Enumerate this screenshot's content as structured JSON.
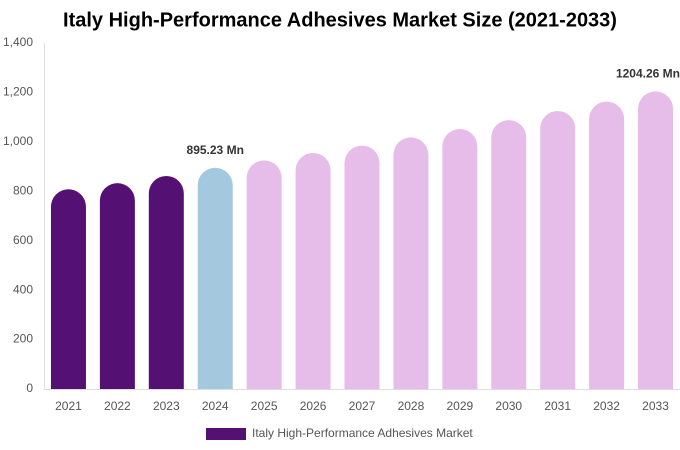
{
  "chart_data": {
    "type": "bar",
    "title": "Italy High-Performance Adhesives Market Size (2021-2033)",
    "categories": [
      "2021",
      "2022",
      "2023",
      "2024",
      "2025",
      "2026",
      "2027",
      "2028",
      "2029",
      "2030",
      "2031",
      "2032",
      "2033"
    ],
    "series": [
      {
        "name": "Italy High-Performance Adhesives Market",
        "color": "#541173",
        "colors": [
          "#541173",
          "#541173",
          "#541173",
          "#a4c9de",
          "#e6bde8",
          "#e6bde8",
          "#e6bde8",
          "#e6bde8",
          "#e6bde8",
          "#e6bde8",
          "#e6bde8",
          "#e6bde8",
          "#e6bde8"
        ],
        "values": [
          808,
          833,
          862,
          895.23,
          925,
          955,
          985,
          1018,
          1052,
          1088,
          1125,
          1163,
          1204.26
        ],
        "value_labels": [
          null,
          null,
          null,
          "895.23 Mn",
          null,
          null,
          null,
          null,
          null,
          null,
          null,
          null,
          "1204.26 Mn"
        ]
      }
    ],
    "ylim": [
      0,
      1400
    ],
    "yticks": [
      0,
      200,
      400,
      600,
      800,
      {
        "value": 1000,
        "label": "1,000"
      },
      {
        "value": 1200,
        "label": "1,200"
      },
      {
        "value": 1400,
        "label": "1,400"
      }
    ],
    "grid": false,
    "legend": "bottom"
  }
}
